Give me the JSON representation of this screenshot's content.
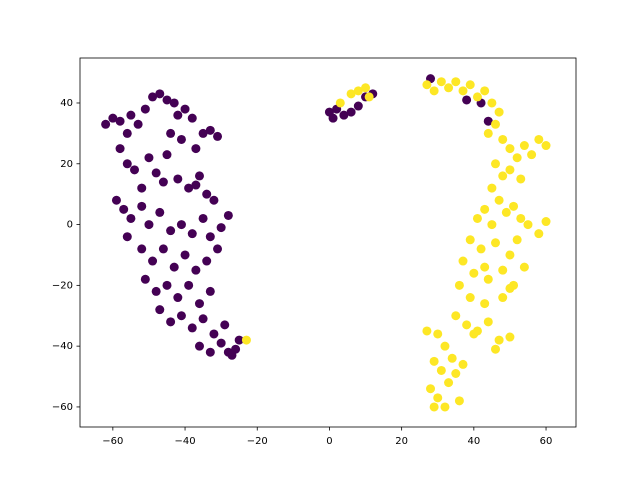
{
  "chart_data": {
    "type": "scatter",
    "xlim": [
      -69.1,
      68.3
    ],
    "ylim": [
      -66.6,
      54.8
    ],
    "xticks": [
      {
        "value": -60,
        "label": "−60"
      },
      {
        "value": -40,
        "label": "−40"
      },
      {
        "value": -20,
        "label": "−20"
      },
      0,
      20,
      40,
      60
    ],
    "yticks": [
      {
        "value": -60,
        "label": "−60"
      },
      {
        "value": -40,
        "label": "−40"
      },
      {
        "value": -20,
        "label": "−20"
      },
      0,
      20,
      40
    ],
    "series": [
      {
        "color": "#440154",
        "x": [
          -62,
          -60,
          -58,
          -56,
          -55,
          -53,
          -51,
          -49,
          -47,
          -45,
          -43,
          -42,
          -40,
          -38,
          -44,
          -41,
          -37,
          -35,
          -33,
          -31,
          -58,
          -56,
          -54,
          -50,
          -48,
          -46,
          -42,
          -39,
          -36,
          -34,
          -32,
          -59,
          -57,
          -55,
          -52,
          -50,
          -47,
          -44,
          -41,
          -38,
          -35,
          -33,
          -30,
          -28,
          -56,
          -52,
          -49,
          -46,
          -43,
          -40,
          -37,
          -34,
          -31,
          -51,
          -48,
          -45,
          -42,
          -39,
          -36,
          -33,
          -47,
          -44,
          -41,
          -38,
          -35,
          -32,
          -29,
          -36,
          -33,
          -30,
          -28,
          -26,
          -25,
          -27,
          -37,
          -45,
          -52,
          0,
          1,
          2,
          4,
          6,
          8,
          10,
          12,
          28,
          38,
          42,
          44
        ],
        "values": [
          33,
          35,
          34,
          30,
          36,
          33,
          38,
          42,
          43,
          41,
          40,
          36,
          38,
          35,
          30,
          28,
          25,
          30,
          31,
          29,
          25,
          20,
          18,
          22,
          17,
          14,
          15,
          12,
          16,
          10,
          8,
          8,
          5,
          2,
          6,
          0,
          4,
          -2,
          0,
          -3,
          2,
          -4,
          -1,
          3,
          -4,
          -8,
          -12,
          -8,
          -14,
          -10,
          -15,
          -12,
          -8,
          -18,
          -22,
          -20,
          -24,
          -20,
          -26,
          -22,
          -28,
          -32,
          -30,
          -34,
          -31,
          -36,
          -33,
          -40,
          -42,
          -39,
          -42,
          -41,
          -38,
          -43,
          13,
          23,
          12,
          37,
          35,
          38,
          36,
          37,
          39,
          42,
          43,
          48,
          41,
          40,
          34
        ]
      },
      {
        "color": "#fde725",
        "x": [
          3,
          6,
          8,
          10,
          11,
          -23,
          27,
          29,
          31,
          33,
          35,
          37,
          39,
          41,
          43,
          45,
          47,
          44,
          46,
          48,
          50,
          52,
          54,
          56,
          58,
          60,
          46,
          48,
          50,
          53,
          45,
          47,
          43,
          41,
          45,
          49,
          51,
          53,
          55,
          58,
          60,
          39,
          42,
          46,
          50,
          52,
          54,
          37,
          40,
          44,
          48,
          51,
          36,
          39,
          43,
          35,
          38,
          41,
          44,
          47,
          50,
          46,
          27,
          30,
          32,
          34,
          29,
          31,
          33,
          28,
          30,
          32,
          35,
          37,
          36,
          29,
          40,
          48,
          50,
          43
        ],
        "values": [
          40,
          43,
          44,
          45,
          42,
          -38,
          46,
          44,
          47,
          45,
          47,
          44,
          46,
          42,
          44,
          40,
          37,
          30,
          33,
          28,
          25,
          22,
          26,
          23,
          28,
          26,
          20,
          16,
          18,
          15,
          12,
          8,
          5,
          2,
          0,
          4,
          6,
          2,
          0,
          -3,
          1,
          -5,
          -8,
          -6,
          -10,
          -5,
          -14,
          -12,
          -16,
          -18,
          -15,
          -20,
          -20,
          -24,
          -26,
          -30,
          -33,
          -35,
          -32,
          -38,
          -37,
          -41,
          -35,
          -36,
          -40,
          -44,
          -45,
          -48,
          -52,
          -54,
          -57,
          -60,
          -49,
          -46,
          -58,
          -60,
          -36,
          -24,
          -21,
          -14
        ]
      }
    ]
  }
}
